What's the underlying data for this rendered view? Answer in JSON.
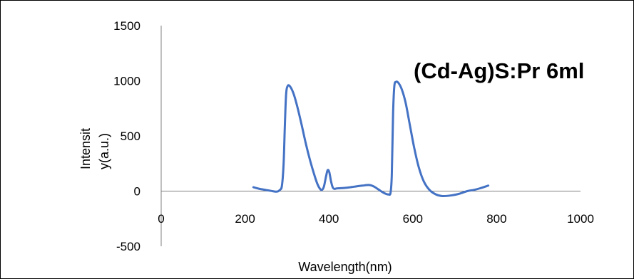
{
  "chart_data": {
    "type": "line",
    "title": "(Cd-Ag)S:Pr 6ml",
    "xlabel": "Wavelength(nm)",
    "ylabel_lines": [
      "Intensit",
      "y(a.u.)"
    ],
    "xlim": [
      0,
      1000
    ],
    "ylim": [
      -500,
      1500
    ],
    "x_ticks": [
      0,
      200,
      400,
      600,
      800,
      1000
    ],
    "y_ticks": [
      -500,
      0,
      500,
      1000,
      1500
    ],
    "x_tick_labels": [
      "0",
      "200",
      "400",
      "600",
      "800",
      "1000"
    ],
    "y_tick_labels": [
      "-500",
      "0",
      "500",
      "1000",
      "1500"
    ],
    "grid": false,
    "legend": "none",
    "series": [
      {
        "color": "#4472C4",
        "x": [
          220,
          235,
          250,
          262,
          275,
          283,
          288,
          292,
          295,
          298,
          302,
          308,
          316,
          325,
          335,
          345,
          355,
          365,
          372,
          378,
          383,
          388,
          393,
          397,
          401,
          405,
          409,
          413,
          420,
          440,
          460,
          480,
          497,
          508,
          518,
          528,
          536,
          542,
          547,
          550,
          553,
          556,
          560,
          566,
          574,
          583,
          593,
          603,
          614,
          626,
          640,
          655,
          670,
          690,
          710,
          730,
          745,
          760,
          780
        ],
        "y": [
          35,
          20,
          10,
          2,
          -5,
          10,
          50,
          250,
          600,
          880,
          955,
          945,
          880,
          760,
          600,
          430,
          280,
          150,
          70,
          25,
          10,
          40,
          130,
          190,
          170,
          90,
          35,
          20,
          25,
          30,
          40,
          50,
          55,
          40,
          15,
          -10,
          -25,
          -30,
          -15,
          150,
          700,
          950,
          990,
          980,
          920,
          800,
          600,
          400,
          220,
          90,
          10,
          -30,
          -45,
          -40,
          -25,
          0,
          10,
          25,
          50
        ]
      }
    ]
  }
}
